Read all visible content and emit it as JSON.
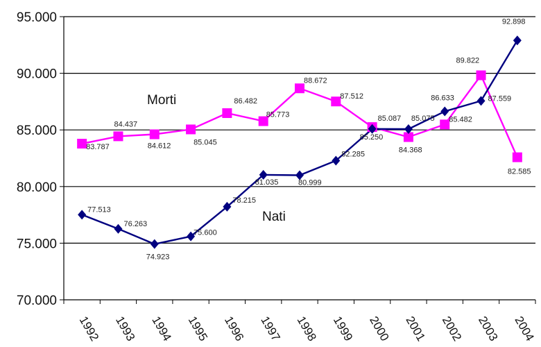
{
  "chart_data": {
    "type": "line",
    "title": "",
    "xlabel": "",
    "ylabel": "",
    "ylim": [
      70000,
      95000
    ],
    "y_ticks": [
      "70.000",
      "75.000",
      "80.000",
      "85.000",
      "90.000",
      "95.000"
    ],
    "y_tick_values": [
      70000,
      75000,
      80000,
      85000,
      90000,
      95000
    ],
    "grid": "horizontal",
    "legend": "none",
    "categories": [
      "1992",
      "1993",
      "1994",
      "1995",
      "1996",
      "1997",
      "1998",
      "1999",
      "2000",
      "2001",
      "2002",
      "2003",
      "2004"
    ],
    "series": [
      {
        "name": "Morti",
        "color": "#ff00ff",
        "marker": "square",
        "values": [
          83787,
          84437,
          84612,
          85045,
          86482,
          85773,
          88672,
          87512,
          85250,
          84368,
          85482,
          89822,
          82585
        ],
        "labels": [
          "83.787",
          "84.437",
          "84.612",
          "85.045",
          "86.482",
          "85.773",
          "88.672",
          "87.512",
          "85.250",
          "84.368",
          "85.482",
          "89.822",
          "82.585"
        ]
      },
      {
        "name": "Nati",
        "color": "#000080",
        "marker": "diamond",
        "values": [
          77513,
          76263,
          74923,
          75600,
          78215,
          81035,
          80999,
          82285,
          85087,
          85075,
          86633,
          87559,
          92898
        ],
        "labels": [
          "77.513",
          "76.263",
          "74.923",
          "75.600",
          "78.215",
          "81.035",
          "80.999",
          "82.285",
          "85.087",
          "85.075",
          "86.633",
          "87.559",
          "92.898"
        ]
      }
    ]
  }
}
